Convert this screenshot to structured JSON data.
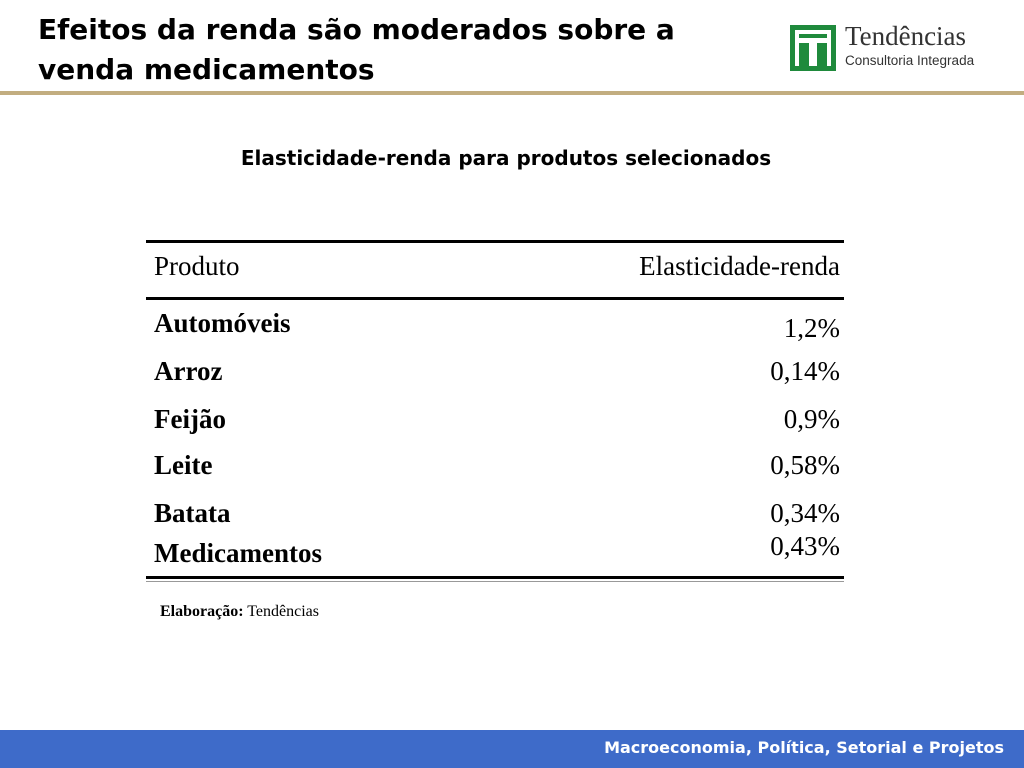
{
  "header": {
    "title": "Efeitos da renda são moderados sobre a venda medicamentos",
    "logo": {
      "name": "Tendências",
      "tagline": "Consultoria Integrada",
      "brand_color": "#1f8a3c"
    },
    "rule_color": "#c2ad80"
  },
  "table": {
    "title": "Elasticidade-renda para produtos selecionados",
    "columns": [
      "Produto",
      "Elasticidade-renda"
    ],
    "rows": [
      {
        "product": "Automóveis",
        "value": "1,2%"
      },
      {
        "product": "Arroz",
        "value": "0,14%"
      },
      {
        "product": "Feijão",
        "value": "0,9%"
      },
      {
        "product": "Leite",
        "value": "0,58%"
      },
      {
        "product": "Batata",
        "value": "0,34%"
      },
      {
        "product": "Medicamentos",
        "value": "0,43%"
      }
    ]
  },
  "source": {
    "label": "Elaboração:",
    "value": "Tendências"
  },
  "footer": {
    "text": "Macroeconomia, Política, Setorial e Projetos",
    "color": "#3e6bc9"
  }
}
